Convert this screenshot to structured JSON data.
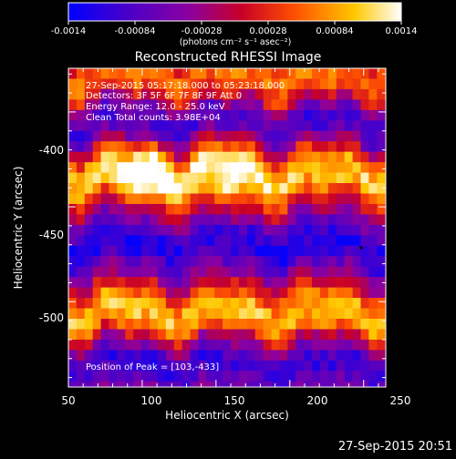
{
  "colorbar": {
    "ticks": [
      "-0.0014",
      "-0.00084",
      "-0.00028",
      "0.00028",
      "0.00084",
      "0.0014"
    ],
    "unit_label": "(photons cm⁻² s⁻¹ asec⁻²)",
    "colors": [
      "#0000ff",
      "#4b00c8",
      "#8a00a0",
      "#c80028",
      "#ff5000",
      "#ffc800",
      "#ffffff"
    ]
  },
  "title": "Reconstructed RHESSI Image",
  "annotations": [
    "27-Sep-2015 05:17:18.000 to 05:23:18.000",
    "Detectors: 3F 5F 6F 7F 8F 9F  Att 0",
    "Energy Range: 12.0 - 25.0 keV",
    "Clean     Total counts: 3.98E+04"
  ],
  "peak_label": "Position of Peak = [103,-433]",
  "footer_timestamp": "27-Sep-2015 20:51",
  "chart_data": {
    "type": "heatmap",
    "title": "Reconstructed RHESSI Image",
    "xlabel": "Heliocentric X (arcsec)",
    "ylabel": "Heliocentric Y (arcsec)",
    "xlim": [
      50,
      265
    ],
    "ylim": [
      -545,
      -377
    ],
    "xticks": [
      50,
      100,
      150,
      200,
      250
    ],
    "yticks": [
      -400,
      -450,
      -500
    ],
    "xtick_labels": [
      "50",
      "100",
      "150",
      "200",
      "250"
    ],
    "ytick_labels": [
      "-400",
      "-450",
      "-500"
    ],
    "zlim": [
      -0.0014,
      0.0014
    ],
    "zunit": "photons cm-2 s-1 asec-2",
    "peak": [
      103,
      -433
    ],
    "features": [
      {
        "kind": "ridge",
        "y_center": -433,
        "x_range": [
          55,
          265
        ],
        "amplitude": 1.0
      },
      {
        "kind": "ridge",
        "y_center": -506,
        "x_range": [
          55,
          265
        ],
        "amplitude": 0.95
      },
      {
        "kind": "ridge",
        "y_center": -383,
        "x_range": [
          55,
          265
        ],
        "amplitude": 0.7
      },
      {
        "kind": "trough",
        "y_center": -470,
        "x_range": [
          55,
          265
        ],
        "amplitude": -0.6
      },
      {
        "kind": "trough",
        "y_center": -405,
        "x_range": [
          55,
          265
        ],
        "amplitude": -0.5
      },
      {
        "kind": "trough",
        "y_center": -533,
        "x_range": [
          55,
          265
        ],
        "amplitude": -0.5
      }
    ]
  }
}
